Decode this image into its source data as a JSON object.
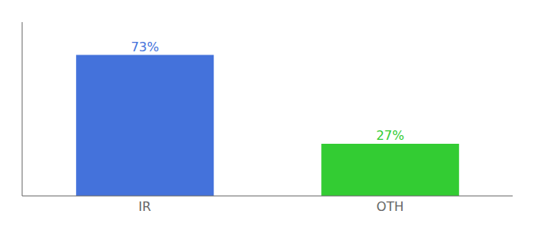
{
  "chart_data": {
    "type": "bar",
    "categories": [
      "IR",
      "OTH"
    ],
    "values": [
      73,
      27
    ],
    "value_labels": [
      "73%",
      "27%"
    ],
    "colors": [
      "#4472db",
      "#33cc33"
    ],
    "ylim": [
      0,
      90
    ],
    "data_labels": true,
    "tick_labels": "x",
    "grid": false
  }
}
